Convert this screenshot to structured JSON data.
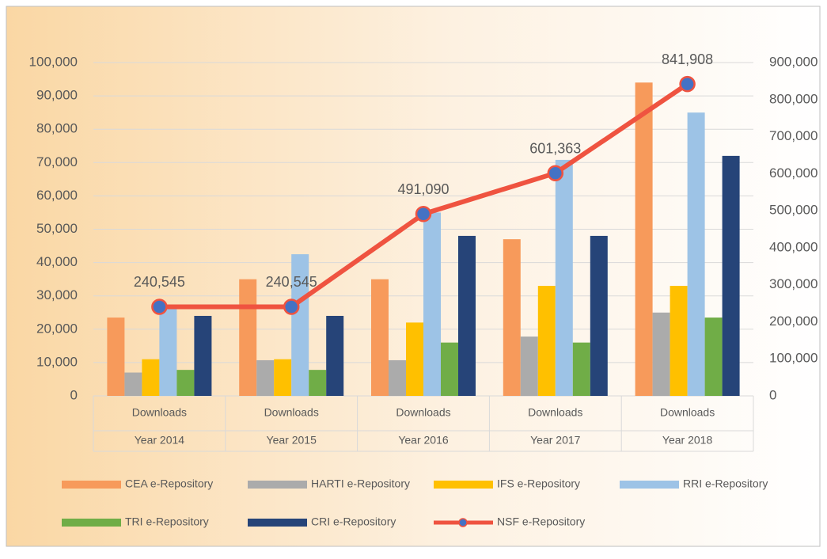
{
  "chart_data": {
    "type": "bar",
    "categories": [
      "Year 2014",
      "Year 2015",
      "Year 2016",
      "Year 2017",
      "Year 2018"
    ],
    "subcategories": [
      "Downloads",
      "Downloads",
      "Downloads",
      "Downloads",
      "Downloads"
    ],
    "series": [
      {
        "name": "CEA e-Repository",
        "color": "#F79A5B",
        "values": [
          23500,
          35000,
          35000,
          47000,
          94000
        ]
      },
      {
        "name": "HARTI e-Repository",
        "color": "#ABABAB",
        "values": [
          7000,
          10700,
          10700,
          17800,
          25000
        ]
      },
      {
        "name": "IFS e-Repository",
        "color": "#FFC000",
        "values": [
          11000,
          11000,
          22000,
          33000,
          33000
        ]
      },
      {
        "name": "RRI e-Repository",
        "color": "#9DC3E6",
        "values": [
          27000,
          42500,
          55000,
          70800,
          85000
        ]
      },
      {
        "name": "TRI e-Repository",
        "color": "#70AD47",
        "values": [
          7800,
          7800,
          16000,
          16000,
          23500
        ]
      },
      {
        "name": "CRI e-Repository",
        "color": "#264478",
        "values": [
          24000,
          24000,
          48000,
          48000,
          72000
        ]
      },
      {
        "name": "NSF e-Repository",
        "color": "#EF5340",
        "marker_color": "#4472C4",
        "type": "line",
        "axis": "y2",
        "values": [
          240545,
          240545,
          491090,
          601363,
          841908
        ],
        "value_labels": [
          "240,545",
          "240,545",
          "491,090",
          "601,363",
          "841,908"
        ]
      }
    ],
    "ylim": [
      0,
      100000
    ],
    "yticks": [
      0,
      {
        "value": 10000,
        "label": "10,000"
      },
      {
        "value": 20000,
        "label": "20,000"
      },
      {
        "value": 30000,
        "label": "30,000"
      },
      {
        "value": 40000,
        "label": "40,000"
      },
      {
        "value": 50000,
        "label": "50,000"
      },
      {
        "value": 60000,
        "label": "60,000"
      },
      {
        "value": 70000,
        "label": "70,000"
      },
      {
        "value": 80000,
        "label": "80,000"
      },
      {
        "value": 90000,
        "label": "90,000"
      },
      {
        "value": 100000,
        "label": "100,000"
      }
    ],
    "y2lim": [
      0,
      900000
    ],
    "y2ticks": [
      0,
      {
        "value": 100000,
        "label": "100,000"
      },
      {
        "value": 200000,
        "label": "200,000"
      },
      {
        "value": 300000,
        "label": "300,000"
      },
      {
        "value": 400000,
        "label": "400,000"
      },
      {
        "value": 500000,
        "label": "500,000"
      },
      {
        "value": 600000,
        "label": "600,000"
      },
      {
        "value": 700000,
        "label": "700,000"
      },
      {
        "value": 800000,
        "label": "800,000"
      },
      {
        "value": 900000,
        "label": "900,000"
      }
    ],
    "grid": true,
    "legend": "bottom"
  }
}
